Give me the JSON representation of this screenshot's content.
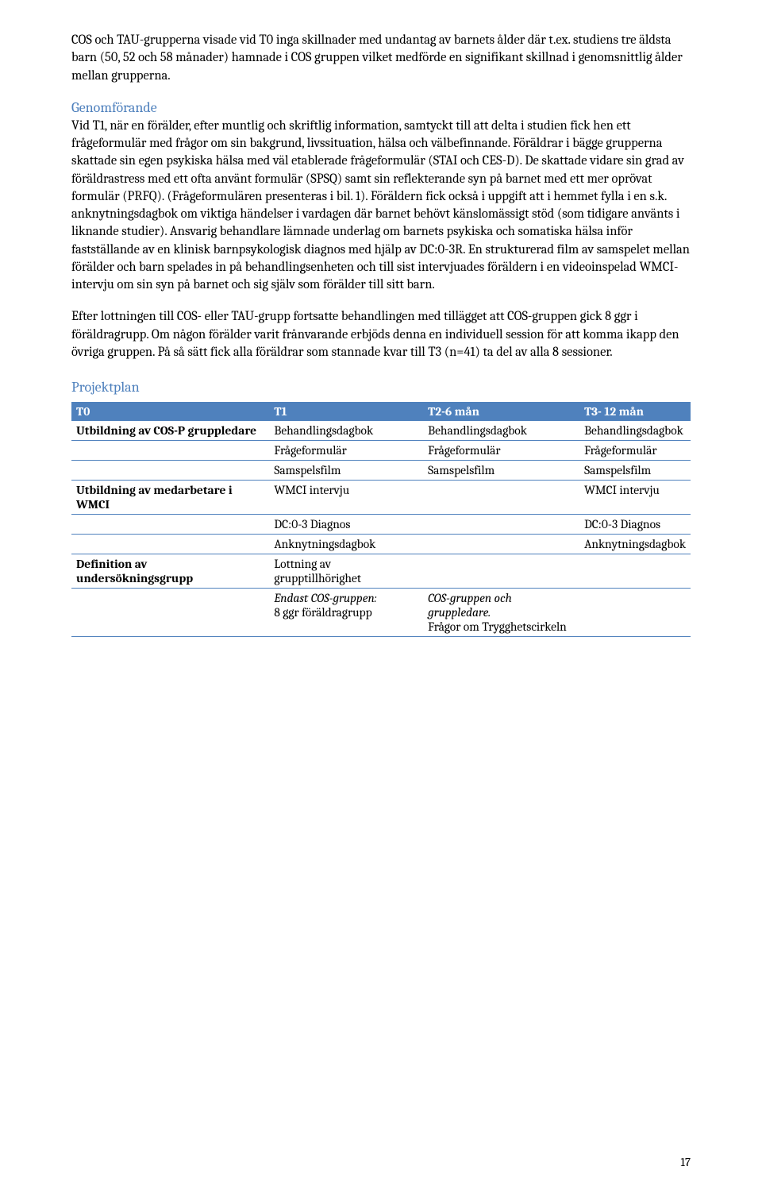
{
  "intro_para": "COS och TAU-grupperna visade vid T0 inga skillnader med undantag av barnets ålder där t.ex. studiens tre äldsta barn (50, 52 och 58 månader) hamnade i COS gruppen vilket medförde en signifikant skillnad i genomsnittlig ålder mellan grupperna.",
  "section1": {
    "heading": "Genomförande",
    "para1": "Vid T1, när en förälder, efter muntlig och skriftlig information, samtyckt till att delta i studien fick hen ett frågeformulär med frågor om sin bakgrund, livssituation, hälsa och välbefinnande. Föräldrar i bägge grupperna skattade sin egen psykiska hälsa med väl etablerade frågeformulär (STAI och CES-D). De skattade vidare sin grad av föräldrastress med ett ofta använt formulär (SPSQ) samt sin reflekterande syn på barnet med ett mer oprövat formulär (PRFQ). (Frågeformulären presenteras i bil. 1). Föräldern fick också i uppgift att i hemmet fylla i en s.k. anknytningsdagbok om viktiga händelser i vardagen där barnet behövt känslomässigt stöd (som tidigare använts i liknande studier). Ansvarig behandlare lämnade underlag om barnets psykiska och somatiska hälsa inför fastställande av en klinisk barnpsykologisk diagnos med hjälp av DC:0-3R. En strukturerad film av samspelet mellan förälder och barn spelades in på behandlingsenheten och till sist intervjuades föräldern i en videoinspelad WMCI-intervju om sin syn på barnet och sig själv som förälder till sitt barn.",
    "para2": "Efter lottningen till COS- eller TAU-grupp fortsatte behandlingen med tillägget att COS-gruppen gick 8 ggr i föräldragrupp. Om någon förälder varit frånvarande erbjöds denna en individuell session för att komma ikapp den övriga gruppen. På så sätt fick alla föräldrar som stannade kvar till T3 (n=41) ta del av alla 8 sessioner."
  },
  "section2": {
    "heading": "Projektplan"
  },
  "table": {
    "headers": [
      "T0",
      "T1",
      "T2-6 mån",
      "T3- 12 mån"
    ],
    "rows": [
      {
        "c0_bold": true,
        "c0": "Utbildning av COS-P gruppledare",
        "c1": "Behandlingsdagbok",
        "c2": "Behandlingsdagbok",
        "c3": "Behandlingsdagbok"
      },
      {
        "c0": "",
        "c1": "Frågeformulär",
        "c2": "Frågeformulär",
        "c3": "Frågeformulär"
      },
      {
        "c0": "",
        "c1": "Samspelsfilm",
        "c2": "Samspelsfilm",
        "c3": "Samspelsfilm"
      },
      {
        "c0_bold": true,
        "c0": "Utbildning av medarbetare i WMCI",
        "c1": "WMCI intervju",
        "c2": "",
        "c3": "WMCI intervju"
      },
      {
        "c0": "",
        "c1": "DC:0-3 Diagnos",
        "c2": "",
        "c3": "DC:0-3 Diagnos"
      },
      {
        "c0": "",
        "c1": "Anknytningsdagbok",
        "c2": "",
        "c3": "Anknytningsdagbok"
      },
      {
        "c0_bold": true,
        "c0": "Definition av undersökningsgrupp",
        "c1": "Lottning av grupptillhörighet",
        "c2": "",
        "c3": ""
      },
      {
        "c0": "",
        "c1_italic": true,
        "c1": "Endast COS-gruppen:",
        "c1b": "8 ggr föräldragrupp",
        "c2_italic": true,
        "c2": "COS-gruppen och gruppledare.",
        "c2b": "Frågor om Trygghetscirkeln",
        "c3": ""
      }
    ],
    "header_bg": "#4f81bd",
    "header_color": "#ffffff",
    "border_color": "#4f81bd"
  },
  "page_number": "17"
}
